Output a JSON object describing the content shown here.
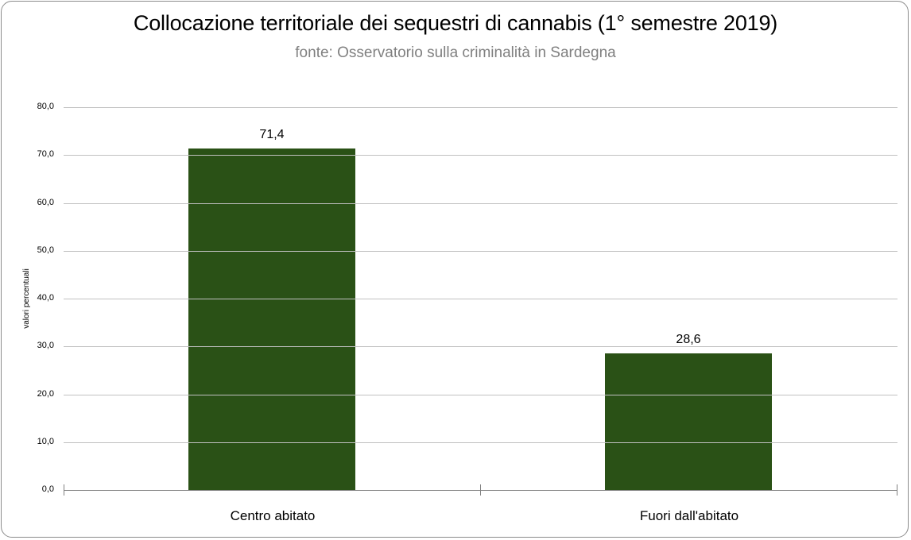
{
  "chart_data": {
    "type": "bar",
    "title": "Collocazione territoriale dei sequestri di cannabis (1° semestre  2019)",
    "subtitle": "fonte: Osservatorio sulla criminalità in Sardegna",
    "xlabel": "",
    "ylabel": "valori percentuali",
    "categories": [
      "Centro abitato",
      "Fuori dall'abitato"
    ],
    "values": [
      71.4,
      28.6
    ],
    "data_labels": [
      "71,4",
      "28,6"
    ],
    "ylim": [
      0,
      80
    ],
    "yticks": [
      "0,0",
      "10,0",
      "20,0",
      "30,0",
      "40,0",
      "50,0",
      "60,0",
      "70,0",
      "80,0"
    ],
    "grid": true,
    "legend": null,
    "bar_color": "#2a5116"
  }
}
